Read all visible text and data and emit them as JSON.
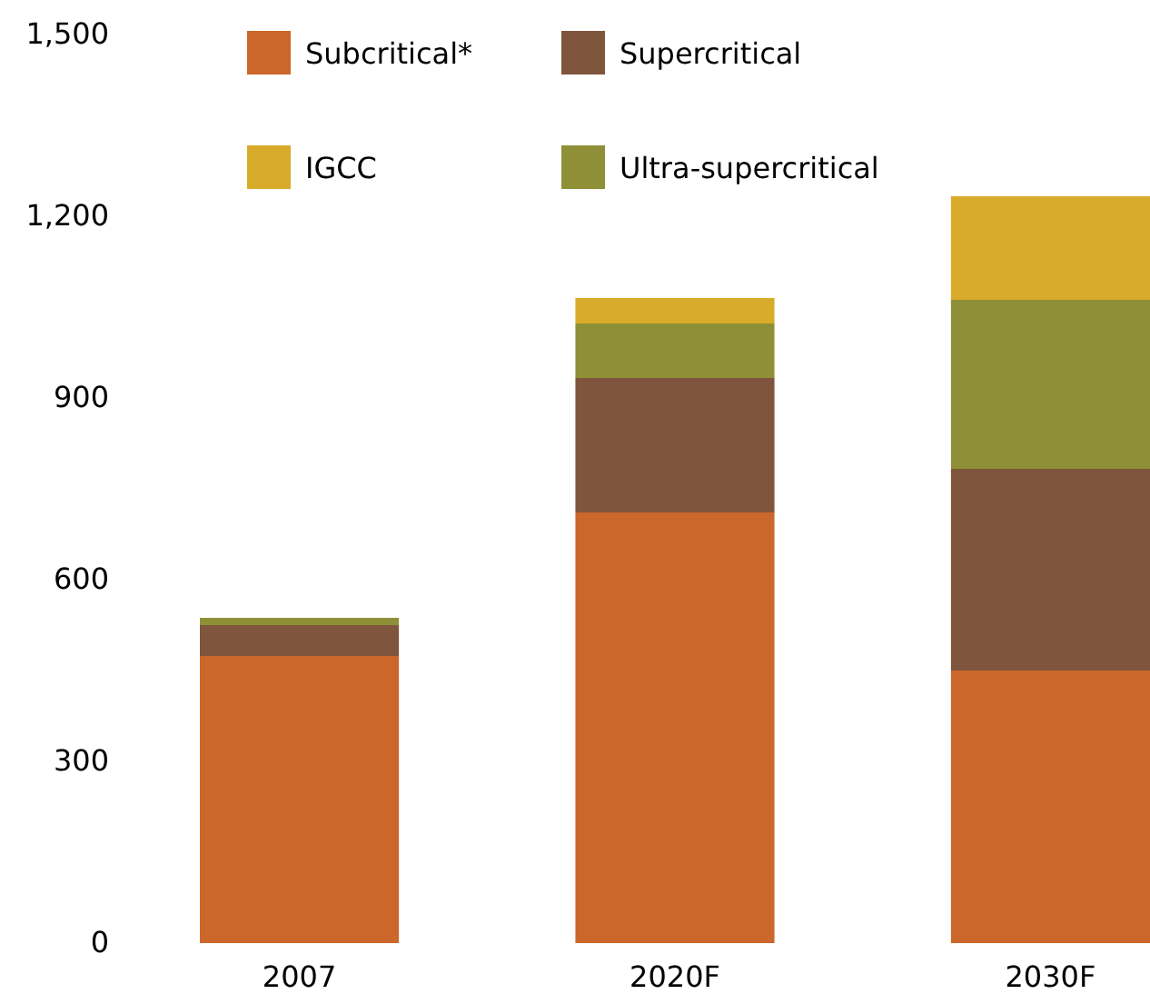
{
  "chart_data": {
    "type": "bar",
    "stacked": true,
    "categories": [
      "2007",
      "2020F",
      "2030F"
    ],
    "series": [
      {
        "name": "Subcritical*",
        "color": "#cb672a",
        "values": [
          474,
          711,
          450
        ]
      },
      {
        "name": "Supercritical",
        "color": "#7f553d",
        "values": [
          51,
          222,
          333
        ]
      },
      {
        "name": "Ultra-supercritical",
        "color": "#8f8f37",
        "values": [
          12,
          90,
          279
        ]
      },
      {
        "name": "IGCC",
        "color": "#d8ac2a",
        "values": [
          null,
          42,
          171
        ]
      }
    ],
    "ylim": [
      0,
      1500
    ],
    "yticks": [
      0,
      {
        "value": 300,
        "label": "300"
      },
      {
        "value": 600,
        "label": "600"
      },
      {
        "value": 900,
        "label": "900"
      },
      {
        "value": 1200,
        "label": "1,200"
      },
      {
        "value": 1500,
        "label": "1,500"
      }
    ],
    "legend": "top"
  }
}
